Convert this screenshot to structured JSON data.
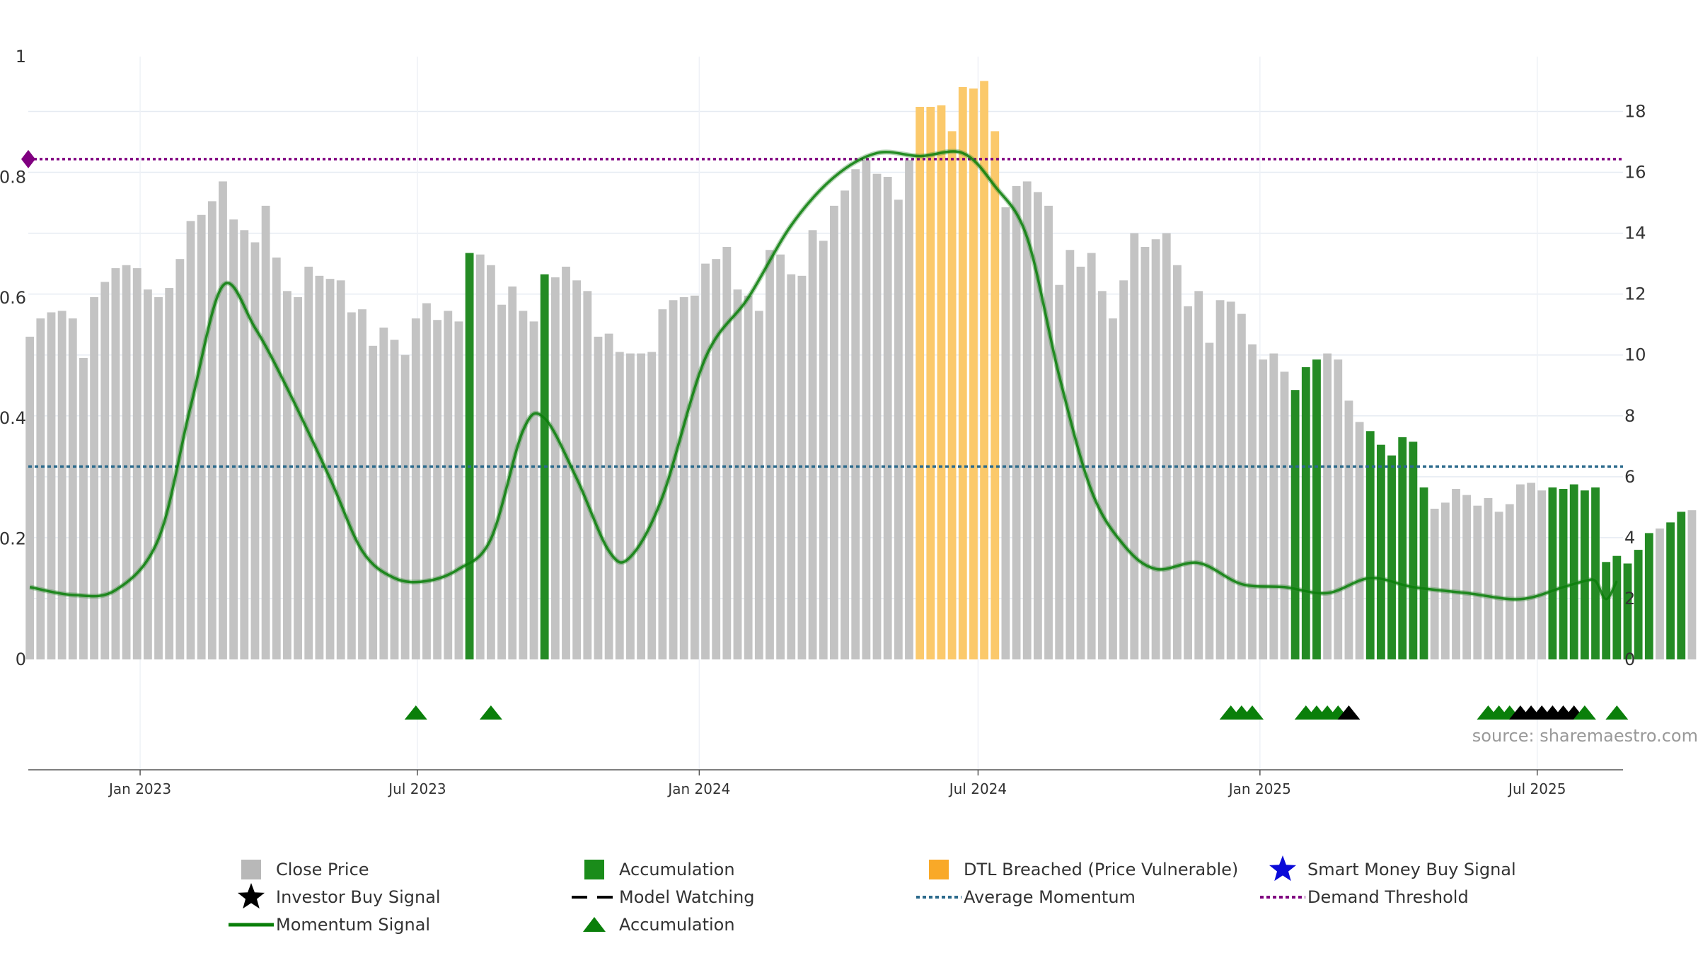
{
  "chart_data": {
    "type": "bar",
    "title": "",
    "xlabel": "",
    "ylabel": "",
    "source": "source: sharemaestro.com",
    "x_tick_labels": [
      "Jan 2023",
      "Jul 2023",
      "Jan 2024",
      "Jul 2024",
      "Jan 2025",
      "Jul 2025"
    ],
    "x_tick_dates": [
      "2023-01-01",
      "2023-07-01",
      "2024-01-01",
      "2024-07-01",
      "2025-01-01",
      "2025-07-01"
    ],
    "y_left": {
      "range": [
        0,
        1
      ],
      "ticks": [
        "0",
        "0.2",
        "0.4",
        "0.6",
        "0.8",
        "1"
      ],
      "tick_values": [
        0,
        0.2,
        0.4,
        0.6,
        0.8,
        1
      ]
    },
    "y_right": {
      "range": [
        0,
        19.8
      ],
      "ticks": [
        "0",
        "2",
        "4",
        "6",
        "8",
        "10",
        "12",
        "14",
        "16",
        "18"
      ],
      "tick_values": [
        0,
        2,
        4,
        6,
        8,
        10,
        12,
        14,
        16,
        18
      ]
    },
    "grid": true,
    "legend_position": "bottom",
    "colors": {
      "close": "#c3c3c3",
      "accumulation": "#248b24",
      "dtl": "#fbc96b",
      "momentum": "#0a7f0a",
      "average": "#2b6a8c",
      "demand": "#800080",
      "investor": "#000000",
      "smart": "#0000dd"
    },
    "legend": [
      {
        "label": "Close Price",
        "symbol": "square",
        "color": "#b8b8b8"
      },
      {
        "label": "Accumulation",
        "symbol": "square",
        "color": "#1a8c1a"
      },
      {
        "label": "DTL Breached (Price Vulnerable)",
        "symbol": "square",
        "color": "#f9a928"
      },
      {
        "label": "Smart Money Buy Signal",
        "symbol": "star",
        "color": "#0a0ad8"
      },
      {
        "label": "Investor Buy Signal",
        "symbol": "star",
        "color": "#000000"
      },
      {
        "label": "Model Watching",
        "symbol": "dash",
        "color": "#000000"
      },
      {
        "label": "Average Momentum",
        "symbol": "dotted",
        "color": "#2b6a8c"
      },
      {
        "label": "Demand Threshold",
        "symbol": "dotted",
        "color": "#800080"
      },
      {
        "label": "Momentum Signal",
        "symbol": "line",
        "color": "#0a7f0a"
      },
      {
        "label": "Accumulation",
        "symbol": "triangle",
        "color": "#0a7f0a"
      }
    ],
    "bars": {
      "start_date": "2022-10-21",
      "interval_days": 7,
      "close": [
        10.6,
        11.2,
        11.4,
        11.45,
        11.2,
        9.9,
        11.9,
        12.4,
        12.85,
        12.95,
        12.85,
        12.15,
        11.9,
        12.2,
        13.15,
        14.4,
        14.6,
        15.05,
        15.7,
        14.45,
        14.1,
        13.7,
        14.9,
        13.2,
        12.1,
        11.9,
        12.9,
        12.6,
        12.5,
        12.45,
        11.4,
        11.5,
        10.3,
        10.9,
        10.5,
        10.0,
        11.2,
        11.7,
        11.15,
        11.45,
        11.1,
        13.35,
        13.3,
        12.95,
        11.65,
        12.25,
        11.45,
        11.1,
        12.65,
        12.55,
        12.9,
        12.45,
        12.1,
        10.6,
        10.7,
        10.1,
        10.05,
        10.05,
        10.1,
        11.5,
        11.8,
        11.9,
        11.95,
        13.0,
        13.15,
        13.55,
        12.15,
        11.95,
        11.45,
        13.45,
        13.3,
        12.65,
        12.6,
        14.1,
        13.75,
        14.9,
        15.4,
        16.1,
        16.4,
        15.95,
        15.85,
        15.1,
        16.4,
        18.15,
        18.15,
        18.2,
        17.35,
        18.8,
        18.75,
        19.0,
        17.35,
        14.85,
        15.55,
        15.7,
        15.35,
        14.9,
        12.3,
        13.45,
        12.9,
        13.35,
        12.1,
        11.2,
        12.45,
        14.0,
        13.55,
        13.8,
        14.0,
        12.95,
        11.6,
        12.1,
        10.4,
        11.8,
        11.75,
        11.35,
        10.35,
        9.85,
        10.05,
        9.45,
        8.85,
        9.6,
        9.85,
        10.05,
        9.85,
        8.5,
        7.8,
        7.5,
        7.05,
        6.7,
        7.3,
        7.15,
        5.65,
        4.95,
        5.15,
        5.6,
        5.4,
        5.05,
        5.3,
        4.85,
        5.1,
        5.75,
        5.8,
        5.55,
        5.65,
        5.6,
        5.75,
        5.55,
        5.65,
        3.2,
        3.4,
        3.15,
        3.6,
        4.15,
        4.3,
        4.5,
        4.85,
        4.9
      ],
      "accumulation": [
        41,
        48,
        118,
        119,
        120,
        125,
        126,
        127,
        128,
        129,
        130,
        142,
        143,
        144,
        145,
        146,
        147,
        148,
        149,
        150,
        151,
        153,
        154,
        156
      ],
      "dtl_breached": [
        83,
        84,
        85,
        86,
        87,
        88,
        89,
        90
      ]
    },
    "momentum": {
      "x_dates": [
        "2022-10-21",
        "2022-11-18",
        "2022-12-16",
        "2023-01-13",
        "2023-02-03",
        "2023-02-24",
        "2023-03-17",
        "2023-04-07",
        "2023-05-05",
        "2023-05-26",
        "2023-06-16",
        "2023-07-07",
        "2023-07-28",
        "2023-08-18",
        "2023-09-08",
        "2023-09-22",
        "2023-10-13",
        "2023-11-03",
        "2023-11-17",
        "2023-12-08",
        "2024-01-05",
        "2024-02-02",
        "2024-03-01",
        "2024-03-29",
        "2024-04-26",
        "2024-05-24",
        "2024-06-21",
        "2024-07-12",
        "2024-08-02",
        "2024-08-23",
        "2024-09-13",
        "2024-10-04",
        "2024-10-25",
        "2024-11-22",
        "2024-12-20",
        "2025-01-17",
        "2025-02-14",
        "2025-03-14",
        "2025-04-11",
        "2025-05-16",
        "2025-06-20",
        "2025-07-18",
        "2025-08-01",
        "2025-08-08",
        "2025-08-15",
        "2025-08-22"
      ],
      "y": [
        0.12,
        0.107,
        0.115,
        0.2,
        0.42,
        0.62,
        0.55,
        0.45,
        0.3,
        0.18,
        0.135,
        0.13,
        0.15,
        0.2,
        0.38,
        0.4,
        0.3,
        0.18,
        0.17,
        0.27,
        0.5,
        0.6,
        0.72,
        0.8,
        0.84,
        0.835,
        0.84,
        0.785,
        0.7,
        0.47,
        0.28,
        0.19,
        0.15,
        0.16,
        0.125,
        0.12,
        0.11,
        0.135,
        0.12,
        0.11,
        0.1,
        0.12,
        0.13,
        0.13,
        0.1,
        0.13
      ]
    },
    "average_momentum": 0.32,
    "demand_threshold": 0.83,
    "markers": [
      {
        "date": "2023-06-30",
        "type": "accumulation"
      },
      {
        "date": "2023-08-18",
        "type": "accumulation"
      },
      {
        "date": "2024-12-13",
        "type": "accumulation"
      },
      {
        "date": "2024-12-20",
        "type": "accumulation"
      },
      {
        "date": "2024-12-27",
        "type": "accumulation"
      },
      {
        "date": "2025-01-31",
        "type": "accumulation"
      },
      {
        "date": "2025-02-07",
        "type": "accumulation"
      },
      {
        "date": "2025-02-14",
        "type": "accumulation"
      },
      {
        "date": "2025-02-21",
        "type": "accumulation"
      },
      {
        "date": "2025-02-28",
        "type": "investor"
      },
      {
        "date": "2025-05-30",
        "type": "accumulation"
      },
      {
        "date": "2025-06-06",
        "type": "accumulation"
      },
      {
        "date": "2025-06-13",
        "type": "accumulation"
      },
      {
        "date": "2025-06-20",
        "type": "investor"
      },
      {
        "date": "2025-06-27",
        "type": "investor"
      },
      {
        "date": "2025-07-04",
        "type": "investor"
      },
      {
        "date": "2025-07-11",
        "type": "investor"
      },
      {
        "date": "2025-07-18",
        "type": "investor"
      },
      {
        "date": "2025-07-25",
        "type": "investor"
      },
      {
        "date": "2025-08-01",
        "type": "accumulation"
      },
      {
        "date": "2025-08-22",
        "type": "accumulation"
      }
    ]
  }
}
